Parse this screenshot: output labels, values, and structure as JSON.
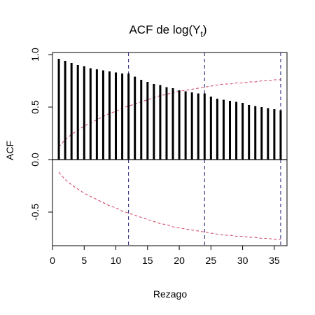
{
  "chart_data": {
    "type": "bar",
    "title": "ACF de log(Y",
    "title_subscript": "t",
    "title_close": ")",
    "xlabel": "Rezago",
    "ylabel": "ACF",
    "xlim": [
      0,
      37
    ],
    "ylim": [
      -0.82,
      1.02
    ],
    "xticks": [
      0,
      5,
      10,
      15,
      20,
      25,
      30,
      35
    ],
    "yticks": [
      -0.5,
      0.0,
      0.5,
      1.0
    ],
    "ytick_labels": [
      "-0.5",
      "0.0",
      "0.5",
      "1.0"
    ],
    "lags": [
      1,
      2,
      3,
      4,
      5,
      6,
      7,
      8,
      9,
      10,
      11,
      12,
      13,
      14,
      15,
      16,
      17,
      18,
      19,
      20,
      21,
      22,
      23,
      24,
      25,
      26,
      27,
      28,
      29,
      30,
      31,
      32,
      33,
      34,
      35,
      36
    ],
    "values": [
      0.96,
      0.94,
      0.92,
      0.9,
      0.89,
      0.87,
      0.86,
      0.85,
      0.84,
      0.83,
      0.82,
      0.82,
      0.79,
      0.76,
      0.74,
      0.72,
      0.71,
      0.69,
      0.68,
      0.66,
      0.65,
      0.64,
      0.63,
      0.63,
      0.6,
      0.58,
      0.57,
      0.56,
      0.55,
      0.54,
      0.52,
      0.51,
      0.5,
      0.49,
      0.48,
      0.47
    ],
    "confidence_band": [
      0.12,
      0.19,
      0.24,
      0.28,
      0.32,
      0.35,
      0.38,
      0.41,
      0.44,
      0.46,
      0.49,
      0.51,
      0.53,
      0.55,
      0.57,
      0.59,
      0.61,
      0.62,
      0.64,
      0.65,
      0.66,
      0.67,
      0.68,
      0.69,
      0.7,
      0.71,
      0.72,
      0.72,
      0.73,
      0.73,
      0.74,
      0.74,
      0.75,
      0.75,
      0.76,
      0.76
    ],
    "vlines": [
      12,
      24,
      36
    ],
    "colors": {
      "bars": "#000000",
      "band": "#d04060",
      "vlines": "#1a1a6e",
      "zero_line": "#000000"
    }
  }
}
